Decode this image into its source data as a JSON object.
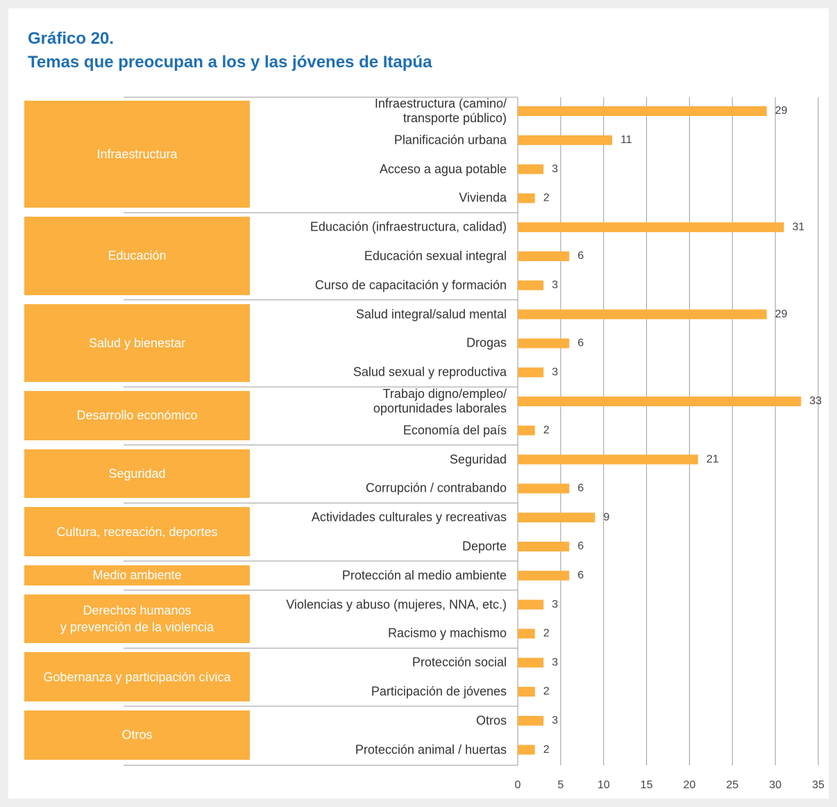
{
  "chart_data": {
    "type": "bar",
    "title": "Gráfico 20.",
    "subtitle": "Temas que preocupan a los y las jóvenes de Itapúa",
    "color": "#fbb040",
    "xlim": [
      0,
      35
    ],
    "xticks": [
      0,
      5,
      10,
      15,
      20,
      25,
      30,
      35
    ],
    "grid": true,
    "groups": [
      {
        "name": "Infraestructura",
        "categories": [
          "Infraestructura (camino/\ntransporte público)",
          "Planificación urbana",
          "Acceso a agua potable",
          "Vivienda"
        ],
        "values": [
          29,
          11,
          3,
          2
        ]
      },
      {
        "name": "Educación",
        "categories": [
          "Educación (infraestructura, calidad)",
          "Educación sexual integral",
          "Curso de capacitación y formación"
        ],
        "values": [
          31,
          6,
          3
        ]
      },
      {
        "name": "Salud y bienestar",
        "categories": [
          "Salud integral/salud mental",
          "Drogas",
          "Salud sexual y reproductiva"
        ],
        "values": [
          29,
          6,
          3
        ]
      },
      {
        "name": "Desarrollo económico",
        "categories": [
          "Trabajo digno/empleo/\noportunidades laborales",
          "Economía del país"
        ],
        "values": [
          33,
          2
        ]
      },
      {
        "name": "Seguridad",
        "categories": [
          "Seguridad",
          "Corrupción / contrabando"
        ],
        "values": [
          21,
          6
        ]
      },
      {
        "name": "Cultura, recreación, deportes",
        "categories": [
          "Actividades culturales y recreativas",
          "Deporte"
        ],
        "values": [
          9,
          6
        ]
      },
      {
        "name": "Medio ambiente",
        "categories": [
          "Protección al medio ambiente"
        ],
        "values": [
          6
        ]
      },
      {
        "name": "Derechos humanos\ny prevención de la violencia",
        "categories": [
          "Violencias y abuso (mujeres, NNA, etc.)",
          "Racismo y machismo"
        ],
        "values": [
          3,
          2
        ]
      },
      {
        "name": "Gobernanza y participación cívica",
        "categories": [
          "Protección social",
          "Participación de jóvenes"
        ],
        "values": [
          3,
          2
        ]
      },
      {
        "name": "Otros",
        "categories": [
          "Otros",
          "Protección animal / huertas"
        ],
        "values": [
          3,
          2
        ]
      }
    ]
  }
}
